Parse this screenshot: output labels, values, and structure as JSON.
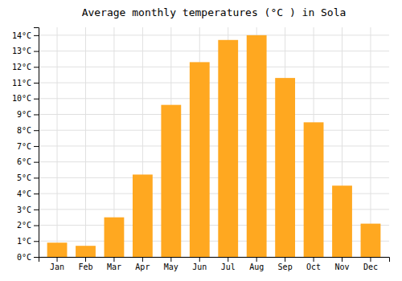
{
  "chart_data": {
    "type": "bar",
    "title": "Average monthly temperatures (°C ) in Sola",
    "categories": [
      "Jan",
      "Feb",
      "Mar",
      "Apr",
      "May",
      "Jun",
      "Jul",
      "Aug",
      "Sep",
      "Oct",
      "Nov",
      "Dec"
    ],
    "values": [
      0.9,
      0.7,
      2.5,
      5.2,
      9.6,
      12.3,
      13.7,
      14.0,
      11.3,
      8.5,
      4.5,
      2.1
    ],
    "color": "#FFA820",
    "ylim": [
      0,
      14.5
    ],
    "yticks": [
      {
        "value": 0,
        "label": "0°C"
      },
      {
        "value": 1,
        "label": "1°C"
      },
      {
        "value": 2,
        "label": "2°C"
      },
      {
        "value": 3,
        "label": "3°C"
      },
      {
        "value": 4,
        "label": "4°C"
      },
      {
        "value": 5,
        "label": "5°C"
      },
      {
        "value": 6,
        "label": "6°C"
      },
      {
        "value": 7,
        "label": "7°C"
      },
      {
        "value": 8,
        "label": "8°C"
      },
      {
        "value": 9,
        "label": "9°C"
      },
      {
        "value": 10,
        "label": "10°C"
      },
      {
        "value": 11,
        "label": "11°C"
      },
      {
        "value": 12,
        "label": "12°C"
      },
      {
        "value": 13,
        "label": "13°C"
      },
      {
        "value": 14,
        "label": "14°C"
      }
    ],
    "grid": true
  }
}
